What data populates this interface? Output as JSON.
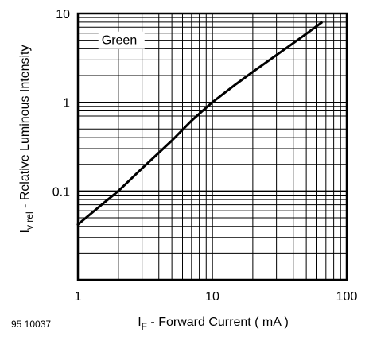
{
  "figure_number": "95 10037",
  "chart_data": {
    "type": "line",
    "title": "",
    "xlabel": {
      "main": "I",
      "subscript": "F",
      "rest": " - Forward Current ( mA )"
    },
    "ylabel": {
      "main": "I",
      "subscript": "v rel",
      "rest": "  - Relative Luminous Intensity"
    },
    "xscale": "log",
    "yscale": "log",
    "xlim": [
      1,
      100
    ],
    "ylim": [
      0.01,
      10
    ],
    "grid": true,
    "xticks": [
      {
        "value": 1,
        "label": "1"
      },
      {
        "value": 10,
        "label": "10"
      },
      {
        "value": 100,
        "label": "100"
      }
    ],
    "yticks": [
      {
        "value": 0.1,
        "label": "0.1"
      },
      {
        "value": 1,
        "label": "1"
      },
      {
        "value": 10,
        "label": "10"
      }
    ],
    "annotations": [
      {
        "text": "Green",
        "x": 1.5,
        "y": 4.5
      }
    ],
    "series": [
      {
        "color": "#000000",
        "x": [
          1,
          1.5,
          2,
          3,
          5,
          7,
          10,
          15,
          20,
          30,
          50,
          65
        ],
        "y": [
          0.042,
          0.07,
          0.1,
          0.18,
          0.37,
          0.62,
          1.0,
          1.6,
          2.2,
          3.4,
          5.9,
          7.9
        ]
      }
    ]
  }
}
